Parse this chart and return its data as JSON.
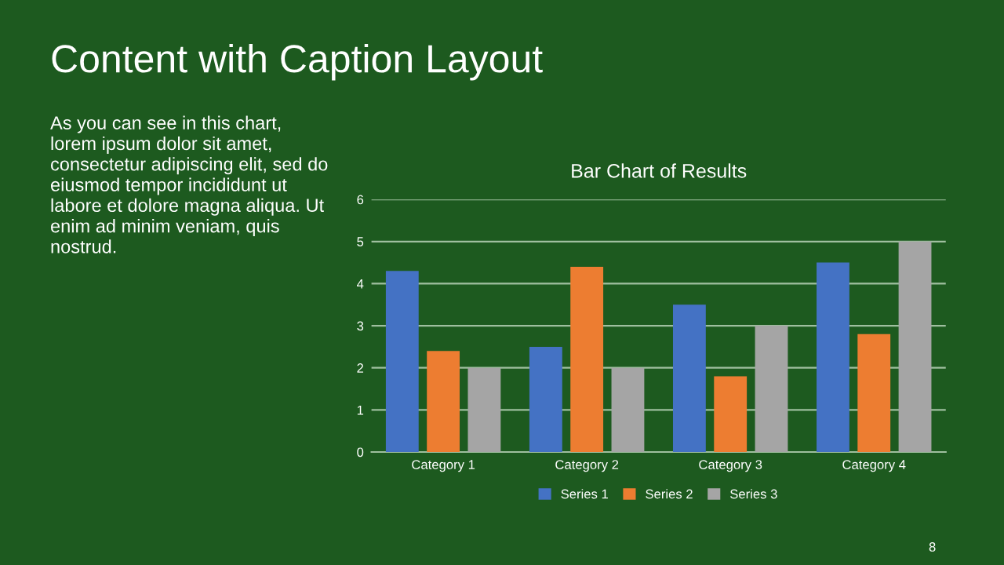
{
  "chart_data": {
    "type": "bar",
    "title": "Bar Chart of Results",
    "categories": [
      "Category 1",
      "Category 2",
      "Category 3",
      "Category 4"
    ],
    "series": [
      {
        "name": "Series 1",
        "color": "#4472c4",
        "values": [
          4.3,
          2.5,
          3.5,
          4.5
        ]
      },
      {
        "name": "Series 2",
        "color": "#ed7d31",
        "values": [
          2.4,
          4.4,
          1.8,
          2.8
        ]
      },
      {
        "name": "Series 3",
        "color": "#a5a5a5",
        "values": [
          2,
          2,
          3,
          5
        ]
      }
    ],
    "ylim": [
      0,
      6
    ],
    "yticks": [
      0,
      1,
      2,
      3,
      4,
      5,
      6
    ],
    "grid": "y",
    "legend": "bottom",
    "annotations": [
      "Content with Caption Layout",
      "As you can see in this chart,\nlorem ipsum dolor sit amet,\nconsectetur adipiscing elit, sed do\neiusmod tempor incididunt ut\nlabore et dolore magna aliqua. Ut\nenim ad minim veniam, quis\nnostrud.",
      "8"
    ]
  }
}
